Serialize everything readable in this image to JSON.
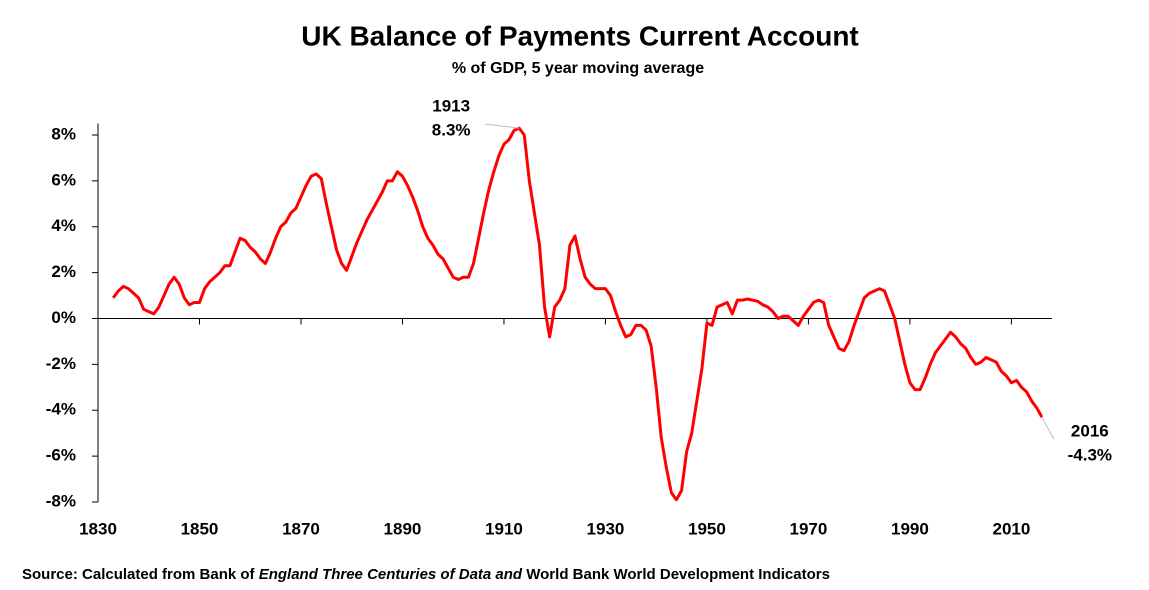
{
  "chart_data": {
    "type": "line",
    "title": "UK Balance of Payments Current Account",
    "subtitle": "% of GDP, 5 year moving average",
    "source": [
      "Source: Calculated from Bank of ",
      "England Three Centuries of Data and",
      " World Bank World Development Indicators"
    ],
    "x": [
      1833,
      1834,
      1835,
      1836,
      1837,
      1838,
      1839,
      1840,
      1841,
      1842,
      1843,
      1844,
      1845,
      1846,
      1847,
      1848,
      1849,
      1850,
      1851,
      1852,
      1853,
      1854,
      1855,
      1856,
      1857,
      1858,
      1859,
      1860,
      1861,
      1862,
      1863,
      1864,
      1865,
      1866,
      1867,
      1868,
      1869,
      1870,
      1871,
      1872,
      1873,
      1874,
      1875,
      1876,
      1877,
      1878,
      1879,
      1880,
      1881,
      1882,
      1883,
      1884,
      1885,
      1886,
      1887,
      1888,
      1889,
      1890,
      1891,
      1892,
      1893,
      1894,
      1895,
      1896,
      1897,
      1898,
      1899,
      1900,
      1901,
      1902,
      1903,
      1904,
      1905,
      1906,
      1907,
      1908,
      1909,
      1910,
      1911,
      1912,
      1913,
      1914,
      1915,
      1916,
      1917,
      1918,
      1919,
      1920,
      1921,
      1922,
      1923,
      1924,
      1925,
      1926,
      1927,
      1928,
      1929,
      1930,
      1931,
      1932,
      1933,
      1934,
      1935,
      1936,
      1937,
      1938,
      1939,
      1940,
      1941,
      1942,
      1943,
      1944,
      1945,
      1946,
      1947,
      1948,
      1949,
      1950,
      1951,
      1952,
      1953,
      1954,
      1955,
      1956,
      1957,
      1958,
      1959,
      1960,
      1961,
      1962,
      1963,
      1964,
      1965,
      1966,
      1967,
      1968,
      1969,
      1970,
      1971,
      1972,
      1973,
      1974,
      1975,
      1976,
      1977,
      1978,
      1979,
      1980,
      1981,
      1982,
      1983,
      1984,
      1985,
      1986,
      1987,
      1988,
      1989,
      1990,
      1991,
      1992,
      1993,
      1994,
      1995,
      1996,
      1997,
      1998,
      1999,
      2000,
      2001,
      2002,
      2003,
      2004,
      2005,
      2006,
      2007,
      2008,
      2009,
      2010,
      2011,
      2012,
      2013,
      2014,
      2015,
      2016
    ],
    "series": [
      {
        "color": "#ff0000",
        "values": [
          0.9,
          1.2,
          1.4,
          1.3,
          1.1,
          0.9,
          0.4,
          0.3,
          0.2,
          0.5,
          1.0,
          1.5,
          1.8,
          1.5,
          0.9,
          0.6,
          0.7,
          0.7,
          1.3,
          1.6,
          1.8,
          2.0,
          2.3,
          2.3,
          2.9,
          3.5,
          3.4,
          3.1,
          2.9,
          2.6,
          2.4,
          2.9,
          3.5,
          4.0,
          4.2,
          4.6,
          4.8,
          5.3,
          5.8,
          6.2,
          6.3,
          6.1,
          5.0,
          4.0,
          3.0,
          2.4,
          2.1,
          2.7,
          3.3,
          3.8,
          4.3,
          4.7,
          5.1,
          5.5,
          6.0,
          6.0,
          6.4,
          6.2,
          5.8,
          5.3,
          4.7,
          4.0,
          3.5,
          3.2,
          2.8,
          2.6,
          2.2,
          1.8,
          1.7,
          1.8,
          1.8,
          2.4,
          3.5,
          4.6,
          5.6,
          6.4,
          7.1,
          7.6,
          7.8,
          8.2,
          8.3,
          8.0,
          6.0,
          4.6,
          3.2,
          0.5,
          -0.8,
          0.5,
          0.8,
          1.3,
          3.2,
          3.6,
          2.6,
          1.8,
          1.5,
          1.3,
          1.3,
          1.3,
          1.0,
          0.3,
          -0.3,
          -0.8,
          -0.7,
          -0.3,
          -0.3,
          -0.5,
          -1.2,
          -3.0,
          -5.2,
          -6.5,
          -7.6,
          -7.9,
          -7.5,
          -5.8,
          -5.0,
          -3.6,
          -2.2,
          -0.2,
          -0.3,
          0.5,
          0.6,
          0.7,
          0.2,
          0.8,
          0.8,
          0.85,
          0.8,
          0.75,
          0.6,
          0.5,
          0.3,
          0.0,
          0.1,
          0.1,
          -0.1,
          -0.3,
          0.1,
          0.4,
          0.7,
          0.8,
          0.7,
          -0.3,
          -0.8,
          -1.3,
          -1.4,
          -1.0,
          -0.3,
          0.3,
          0.9,
          1.1,
          1.2,
          1.3,
          1.2,
          0.6,
          0.0,
          -1.0,
          -2.0,
          -2.8,
          -3.1,
          -3.1,
          -2.6,
          -2.0,
          -1.5,
          -1.2,
          -0.9,
          -0.6,
          -0.8,
          -1.1,
          -1.3,
          -1.7,
          -2.0,
          -1.9,
          -1.7,
          -1.8,
          -1.9,
          -2.3,
          -2.5,
          -2.8,
          -2.7,
          -3.0,
          -3.2,
          -3.6,
          -3.9,
          -4.3
        ]
      }
    ],
    "xlim": [
      1830,
      2018
    ],
    "xticks": [
      1830,
      1850,
      1870,
      1890,
      1910,
      1930,
      1950,
      1970,
      1990,
      2010
    ],
    "ylim": [
      -8,
      8.5
    ],
    "yticks": [
      {
        "value": 8,
        "label": "8%"
      },
      {
        "value": 6,
        "label": "6%"
      },
      {
        "value": 4,
        "label": "4%"
      },
      {
        "value": 2,
        "label": "2%"
      },
      {
        "value": 0,
        "label": "0%"
      },
      {
        "value": -2,
        "label": "-2%"
      },
      {
        "value": -4,
        "label": "-4%"
      },
      {
        "value": -6,
        "label": "-6%"
      },
      {
        "value": -8,
        "label": "-8%"
      }
    ],
    "annotations": [
      {
        "x": 1913,
        "y": 8.3,
        "year_label": "1913",
        "value_label": "8.3%"
      },
      {
        "x": 2016,
        "y": -4.3,
        "year_label": "2016",
        "value_label": "-4.3%"
      }
    ]
  }
}
